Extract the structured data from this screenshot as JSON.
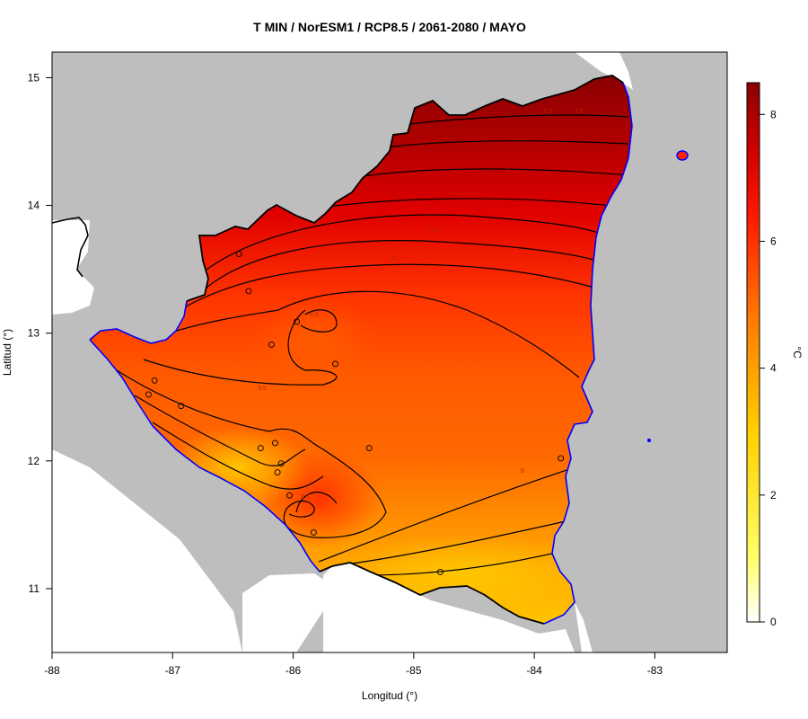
{
  "title": "T MIN / NorESM1 / RCP8.5 / 2061-2080 / MAYO",
  "xlabel": "Longitud (°)",
  "ylabel": "Latitud (°)",
  "colorbar": {
    "unit": "°C",
    "ticks": [
      "8",
      "6",
      "4",
      "2",
      "0"
    ],
    "range": [
      0,
      8.5
    ]
  },
  "axes": {
    "x_ticks": [
      "-88",
      "-87",
      "-86",
      "-85",
      "-84",
      "-83"
    ],
    "y_ticks": [
      "15",
      "14",
      "13",
      "12",
      "11"
    ],
    "xlim": [
      -88,
      -82.4
    ],
    "ylim": [
      10.5,
      15.2
    ]
  },
  "colors": {
    "background": "#bebebe",
    "coastline": "#0000ff",
    "border": "#000000",
    "contour": "#000000",
    "ramp_low": "#ffffff",
    "ramp_mid": "#ffff00",
    "ramp_high": "#8b0000"
  },
  "contour_labels": [
    "7.5",
    "7.5",
    "7",
    "6.5",
    "6",
    "6.5",
    "5.5",
    "6",
    "6.5"
  ],
  "stations": [
    {
      "lon": -86.45,
      "lat": 13.62
    },
    {
      "lon": -86.37,
      "lat": 13.33
    },
    {
      "lon": -85.97,
      "lat": 13.09
    },
    {
      "lon": -86.18,
      "lat": 12.91
    },
    {
      "lon": -85.65,
      "lat": 12.76
    },
    {
      "lon": -87.15,
      "lat": 12.63
    },
    {
      "lon": -87.2,
      "lat": 12.52
    },
    {
      "lon": -86.93,
      "lat": 12.43
    },
    {
      "lon": -86.15,
      "lat": 12.14
    },
    {
      "lon": -86.27,
      "lat": 12.1
    },
    {
      "lon": -85.37,
      "lat": 12.1
    },
    {
      "lon": -86.1,
      "lat": 11.98
    },
    {
      "lon": -86.13,
      "lat": 11.91
    },
    {
      "lon": -86.03,
      "lat": 11.73
    },
    {
      "lon": -85.83,
      "lat": 11.44
    },
    {
      "lon": -84.78,
      "lat": 11.13
    },
    {
      "lon": -83.78,
      "lat": 12.02
    }
  ]
}
